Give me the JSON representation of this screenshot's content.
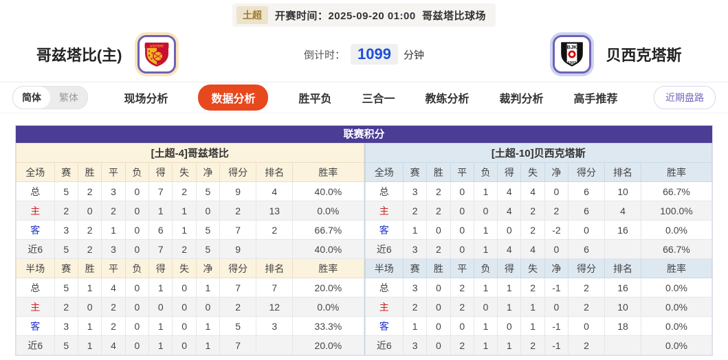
{
  "top_bar": {
    "league": "土超",
    "kickoff_label": "开赛时间：",
    "kickoff_time": "2025-09-20 01:00",
    "venue": "哥兹塔比球场"
  },
  "match_header": {
    "home_name": "哥兹塔比(主)",
    "away_name": "贝西克塔斯",
    "countdown_label": "倒计时：",
    "countdown_value": "1099",
    "countdown_unit": "分钟",
    "home_logo_text": "GÖZTEPE",
    "away_logo_initials": "BJK",
    "away_logo_year": "1903"
  },
  "nav": {
    "lang_toggle": {
      "simplified": "简体",
      "traditional": "繁体",
      "active": "简体"
    },
    "tabs": [
      {
        "label": "现场分析",
        "active": false
      },
      {
        "label": "数据分析",
        "active": true
      },
      {
        "label": "胜平负",
        "active": false
      },
      {
        "label": "三合一",
        "active": false
      },
      {
        "label": "教练分析",
        "active": false
      },
      {
        "label": "裁判分析",
        "active": false
      },
      {
        "label": "高手推荐",
        "active": false
      }
    ],
    "recent_odds_button": "近期盘路"
  },
  "league_table": {
    "title": "联赛积分",
    "columns_full": [
      "全场",
      "赛",
      "胜",
      "平",
      "负",
      "得",
      "失",
      "净",
      "得分",
      "排名",
      "胜率"
    ],
    "columns_half": [
      "半场",
      "赛",
      "胜",
      "平",
      "负",
      "得",
      "失",
      "净",
      "得分",
      "排名",
      "胜率"
    ],
    "home": {
      "header": "[土超-4]哥兹塔比",
      "full": [
        [
          "总",
          "5",
          "2",
          "3",
          "0",
          "7",
          "2",
          "5",
          "9",
          "4",
          "40.0%"
        ],
        [
          "主",
          "2",
          "0",
          "2",
          "0",
          "1",
          "1",
          "0",
          "2",
          "13",
          "0.0%"
        ],
        [
          "客",
          "3",
          "2",
          "1",
          "0",
          "6",
          "1",
          "5",
          "7",
          "2",
          "66.7%"
        ],
        [
          "近6",
          "5",
          "2",
          "3",
          "0",
          "7",
          "2",
          "5",
          "9",
          "",
          "40.0%"
        ]
      ],
      "half": [
        [
          "总",
          "5",
          "1",
          "4",
          "0",
          "1",
          "0",
          "1",
          "7",
          "7",
          "20.0%"
        ],
        [
          "主",
          "2",
          "0",
          "2",
          "0",
          "0",
          "0",
          "0",
          "2",
          "12",
          "0.0%"
        ],
        [
          "客",
          "3",
          "1",
          "2",
          "0",
          "1",
          "0",
          "1",
          "5",
          "3",
          "33.3%"
        ],
        [
          "近6",
          "5",
          "1",
          "4",
          "0",
          "1",
          "0",
          "1",
          "7",
          "",
          "20.0%"
        ]
      ]
    },
    "away": {
      "header": "[土超-10]贝西克塔斯",
      "full": [
        [
          "总",
          "3",
          "2",
          "0",
          "1",
          "4",
          "4",
          "0",
          "6",
          "10",
          "66.7%"
        ],
        [
          "主",
          "2",
          "2",
          "0",
          "0",
          "4",
          "2",
          "2",
          "6",
          "4",
          "100.0%"
        ],
        [
          "客",
          "1",
          "0",
          "0",
          "1",
          "0",
          "2",
          "-2",
          "0",
          "16",
          "0.0%"
        ],
        [
          "近6",
          "3",
          "2",
          "0",
          "1",
          "4",
          "4",
          "0",
          "6",
          "",
          "66.7%"
        ]
      ],
      "half": [
        [
          "总",
          "3",
          "0",
          "2",
          "1",
          "1",
          "2",
          "-1",
          "2",
          "16",
          "0.0%"
        ],
        [
          "主",
          "2",
          "0",
          "2",
          "0",
          "1",
          "1",
          "0",
          "2",
          "10",
          "0.0%"
        ],
        [
          "客",
          "1",
          "0",
          "0",
          "1",
          "0",
          "1",
          "-1",
          "0",
          "18",
          "0.0%"
        ],
        [
          "近6",
          "3",
          "0",
          "2",
          "1",
          "1",
          "2",
          "-1",
          "2",
          "",
          "0.0%"
        ]
      ]
    }
  },
  "colors": {
    "accent_purple": "#4b3d96",
    "active_tab_orange": "#e8481e",
    "home_theme_bg": "#fcf3de",
    "away_theme_bg": "#dee8f0",
    "row_label_home_red": "#cc2222",
    "row_label_away_blue": "#2233cc",
    "countdown_blue": "#1d4fd7"
  }
}
